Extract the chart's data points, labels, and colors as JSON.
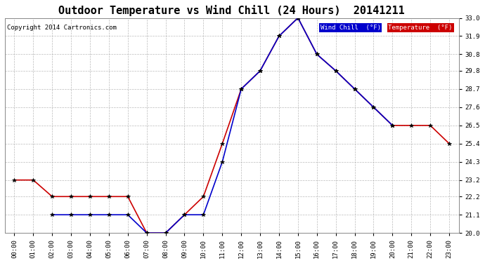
{
  "title": "Outdoor Temperature vs Wind Chill (24 Hours)  20141211",
  "copyright": "Copyright 2014 Cartronics.com",
  "background_color": "#ffffff",
  "plot_bg_color": "#ffffff",
  "grid_color": "#aaaaaa",
  "hours": [
    "00:00",
    "01:00",
    "02:00",
    "03:00",
    "04:00",
    "05:00",
    "06:00",
    "07:00",
    "08:00",
    "09:00",
    "10:00",
    "11:00",
    "12:00",
    "13:00",
    "14:00",
    "15:00",
    "16:00",
    "17:00",
    "18:00",
    "19:00",
    "20:00",
    "21:00",
    "22:00",
    "23:00"
  ],
  "temperature": [
    23.2,
    23.2,
    22.2,
    22.2,
    22.2,
    22.2,
    22.2,
    20.0,
    20.0,
    21.1,
    22.2,
    25.4,
    28.7,
    29.8,
    31.9,
    33.0,
    30.8,
    29.8,
    28.7,
    27.6,
    26.5,
    26.5,
    26.5,
    25.4
  ],
  "wind_chill": [
    null,
    null,
    21.1,
    21.1,
    21.1,
    21.1,
    21.1,
    20.0,
    20.0,
    21.1,
    21.1,
    24.3,
    28.7,
    29.8,
    31.9,
    33.0,
    30.8,
    29.8,
    28.7,
    27.6,
    26.5,
    null,
    null,
    null
  ],
  "temp_color": "#cc0000",
  "wind_chill_color": "#0000cc",
  "ylim": [
    20.0,
    33.0
  ],
  "yticks": [
    20.0,
    21.1,
    22.2,
    23.2,
    24.3,
    25.4,
    26.5,
    27.6,
    28.7,
    29.8,
    30.8,
    31.9,
    33.0
  ],
  "title_fontsize": 11,
  "legend_wind_label": "Wind Chill  (°F)",
  "legend_temp_label": "Temperature  (°F)"
}
